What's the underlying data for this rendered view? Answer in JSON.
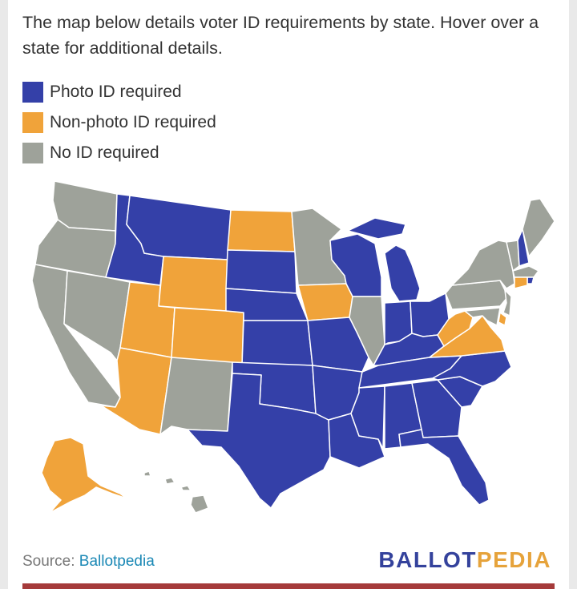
{
  "intro": "The map below details voter ID requirements by state. Hover over a state for additional details.",
  "legend": [
    {
      "label": "Photo ID required",
      "color": "#3440a8"
    },
    {
      "label": "Non-photo ID required",
      "color": "#f0a33a"
    },
    {
      "label": "No ID required",
      "color": "#9ea29a"
    }
  ],
  "source": {
    "prefix": "Source:",
    "link": "Ballotpedia"
  },
  "logo": {
    "part1": "BALLOT",
    "part2": "PEDIA"
  },
  "map": {
    "states": [
      {
        "id": "WA",
        "category": "none"
      },
      {
        "id": "OR",
        "category": "none"
      },
      {
        "id": "CA",
        "category": "none"
      },
      {
        "id": "NV",
        "category": "none"
      },
      {
        "id": "ID",
        "category": "photo"
      },
      {
        "id": "MT",
        "category": "photo"
      },
      {
        "id": "WY",
        "category": "nonphoto"
      },
      {
        "id": "UT",
        "category": "nonphoto"
      },
      {
        "id": "CO",
        "category": "nonphoto"
      },
      {
        "id": "AZ",
        "category": "nonphoto"
      },
      {
        "id": "NM",
        "category": "none"
      },
      {
        "id": "ND",
        "category": "nonphoto"
      },
      {
        "id": "SD",
        "category": "photo"
      },
      {
        "id": "NE",
        "category": "photo"
      },
      {
        "id": "KS",
        "category": "photo"
      },
      {
        "id": "OK",
        "category": "photo"
      },
      {
        "id": "TX",
        "category": "photo"
      },
      {
        "id": "MN",
        "category": "none"
      },
      {
        "id": "IA",
        "category": "nonphoto"
      },
      {
        "id": "MO",
        "category": "photo"
      },
      {
        "id": "AR",
        "category": "photo"
      },
      {
        "id": "LA",
        "category": "photo"
      },
      {
        "id": "WI",
        "category": "photo"
      },
      {
        "id": "IL",
        "category": "none"
      },
      {
        "id": "MI",
        "category": "photo"
      },
      {
        "id": "IN",
        "category": "photo"
      },
      {
        "id": "OH",
        "category": "photo"
      },
      {
        "id": "KY",
        "category": "photo"
      },
      {
        "id": "TN",
        "category": "photo"
      },
      {
        "id": "MS",
        "category": "photo"
      },
      {
        "id": "AL",
        "category": "photo"
      },
      {
        "id": "GA",
        "category": "photo"
      },
      {
        "id": "FL",
        "category": "photo"
      },
      {
        "id": "SC",
        "category": "photo"
      },
      {
        "id": "NC",
        "category": "photo"
      },
      {
        "id": "VA",
        "category": "nonphoto"
      },
      {
        "id": "WV",
        "category": "nonphoto"
      },
      {
        "id": "PA",
        "category": "none"
      },
      {
        "id": "NY",
        "category": "none"
      },
      {
        "id": "VT",
        "category": "none"
      },
      {
        "id": "NH",
        "category": "photo"
      },
      {
        "id": "ME",
        "category": "none"
      },
      {
        "id": "MA",
        "category": "none"
      },
      {
        "id": "RI",
        "category": "photo"
      },
      {
        "id": "CT",
        "category": "nonphoto"
      },
      {
        "id": "NJ",
        "category": "none"
      },
      {
        "id": "DE",
        "category": "nonphoto"
      },
      {
        "id": "MD",
        "category": "none"
      },
      {
        "id": "AK",
        "category": "nonphoto"
      },
      {
        "id": "HI",
        "category": "none"
      }
    ]
  }
}
